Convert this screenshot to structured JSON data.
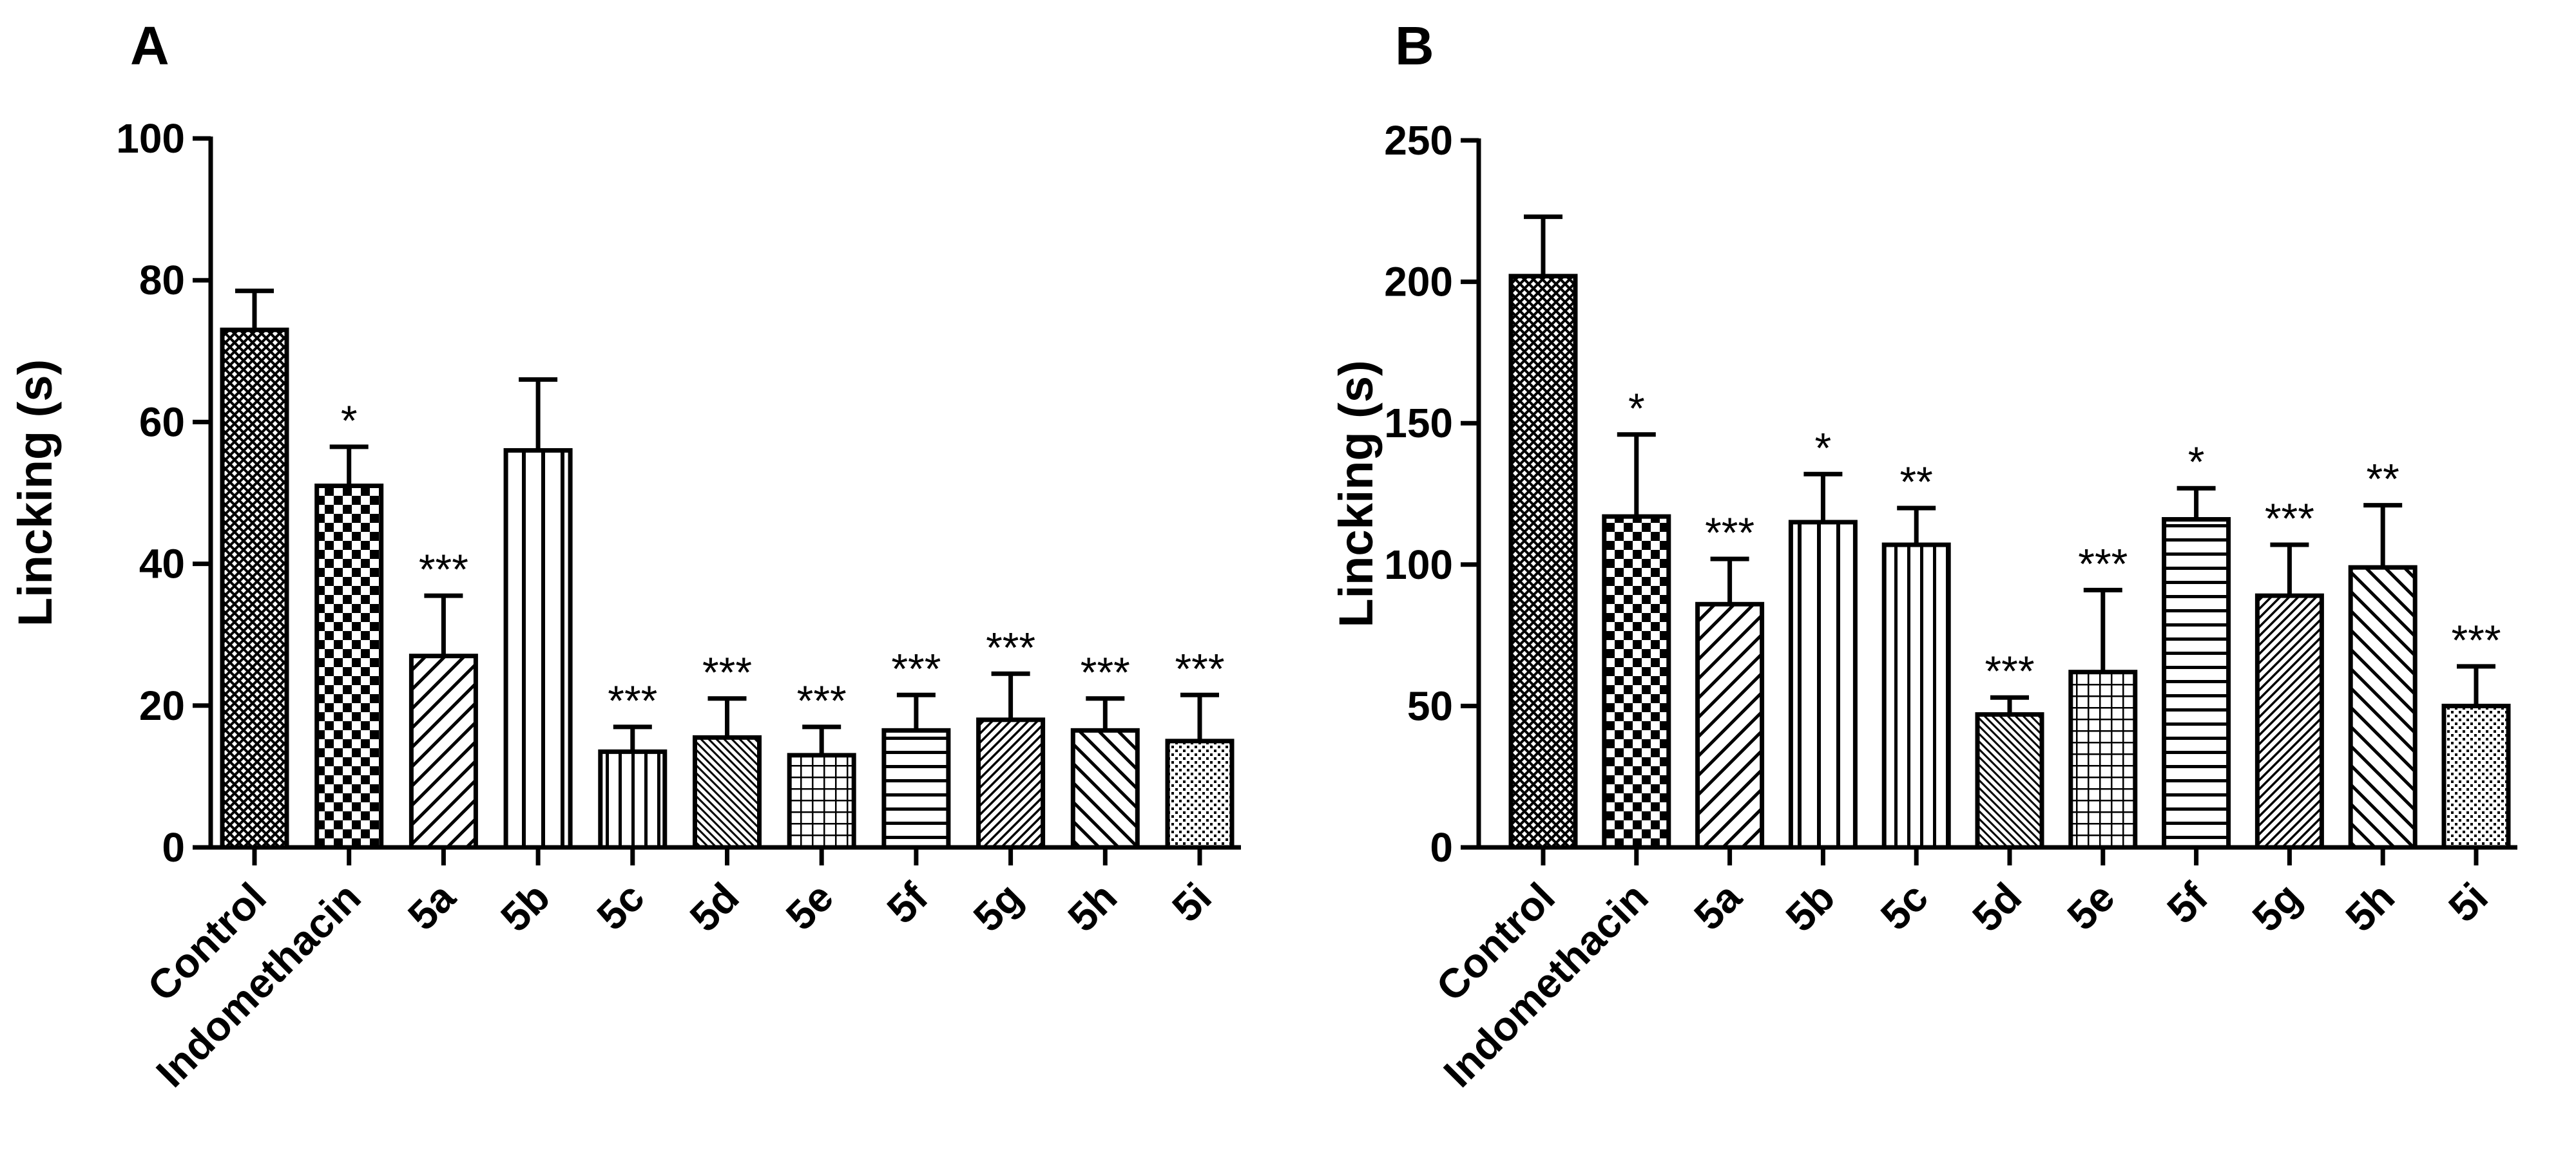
{
  "chart_data": [
    {
      "panel": "A",
      "type": "bar",
      "ylabel": "Lincking (s)",
      "xlabel": "",
      "ylim": [
        0,
        100
      ],
      "yticks": [
        0,
        20,
        40,
        60,
        80,
        100
      ],
      "categories": [
        "Control",
        "Indomethacin",
        "5a",
        "5b",
        "5c",
        "5d",
        "5e",
        "5f",
        "5g",
        "5h",
        "5i"
      ],
      "values": [
        73,
        51,
        27,
        56,
        13.5,
        15.5,
        13,
        16.5,
        18,
        16.5,
        15
      ],
      "errors": [
        5.5,
        5.5,
        8.5,
        10,
        3.5,
        5.5,
        4,
        5,
        6.5,
        4.5,
        6.5
      ],
      "significance": [
        "",
        "*",
        "***",
        "",
        "***",
        "***",
        "***",
        "***",
        "***",
        "***",
        "***"
      ],
      "patterns": [
        "crosshatch-fine",
        "checker",
        "diag-right",
        "vertical-wide",
        "vertical-fine",
        "diag-left-fine",
        "grid",
        "horizontal",
        "diag-right-fine",
        "diag-left",
        "dots"
      ]
    },
    {
      "panel": "B",
      "type": "bar",
      "ylabel": "Lincking (s)",
      "xlabel": "",
      "ylim": [
        0,
        250
      ],
      "yticks": [
        0,
        50,
        100,
        150,
        200,
        250
      ],
      "categories": [
        "Control",
        "Indomethacin",
        "5a",
        "5b",
        "5c",
        "5d",
        "5e",
        "5f",
        "5g",
        "5h",
        "5i"
      ],
      "values": [
        202,
        117,
        86,
        115,
        107,
        47,
        62,
        116,
        89,
        99,
        50
      ],
      "errors": [
        21,
        29,
        16,
        17,
        13,
        6,
        29,
        11,
        18,
        22,
        14
      ],
      "significance": [
        "",
        "*",
        "***",
        "*",
        "**",
        "***",
        "***",
        "*",
        "***",
        "**",
        "***"
      ],
      "patterns": [
        "crosshatch-fine",
        "checker",
        "diag-right",
        "vertical-wide",
        "vertical-fine",
        "diag-left-fine",
        "grid",
        "horizontal",
        "diag-right-fine",
        "diag-left",
        "dots"
      ]
    }
  ]
}
